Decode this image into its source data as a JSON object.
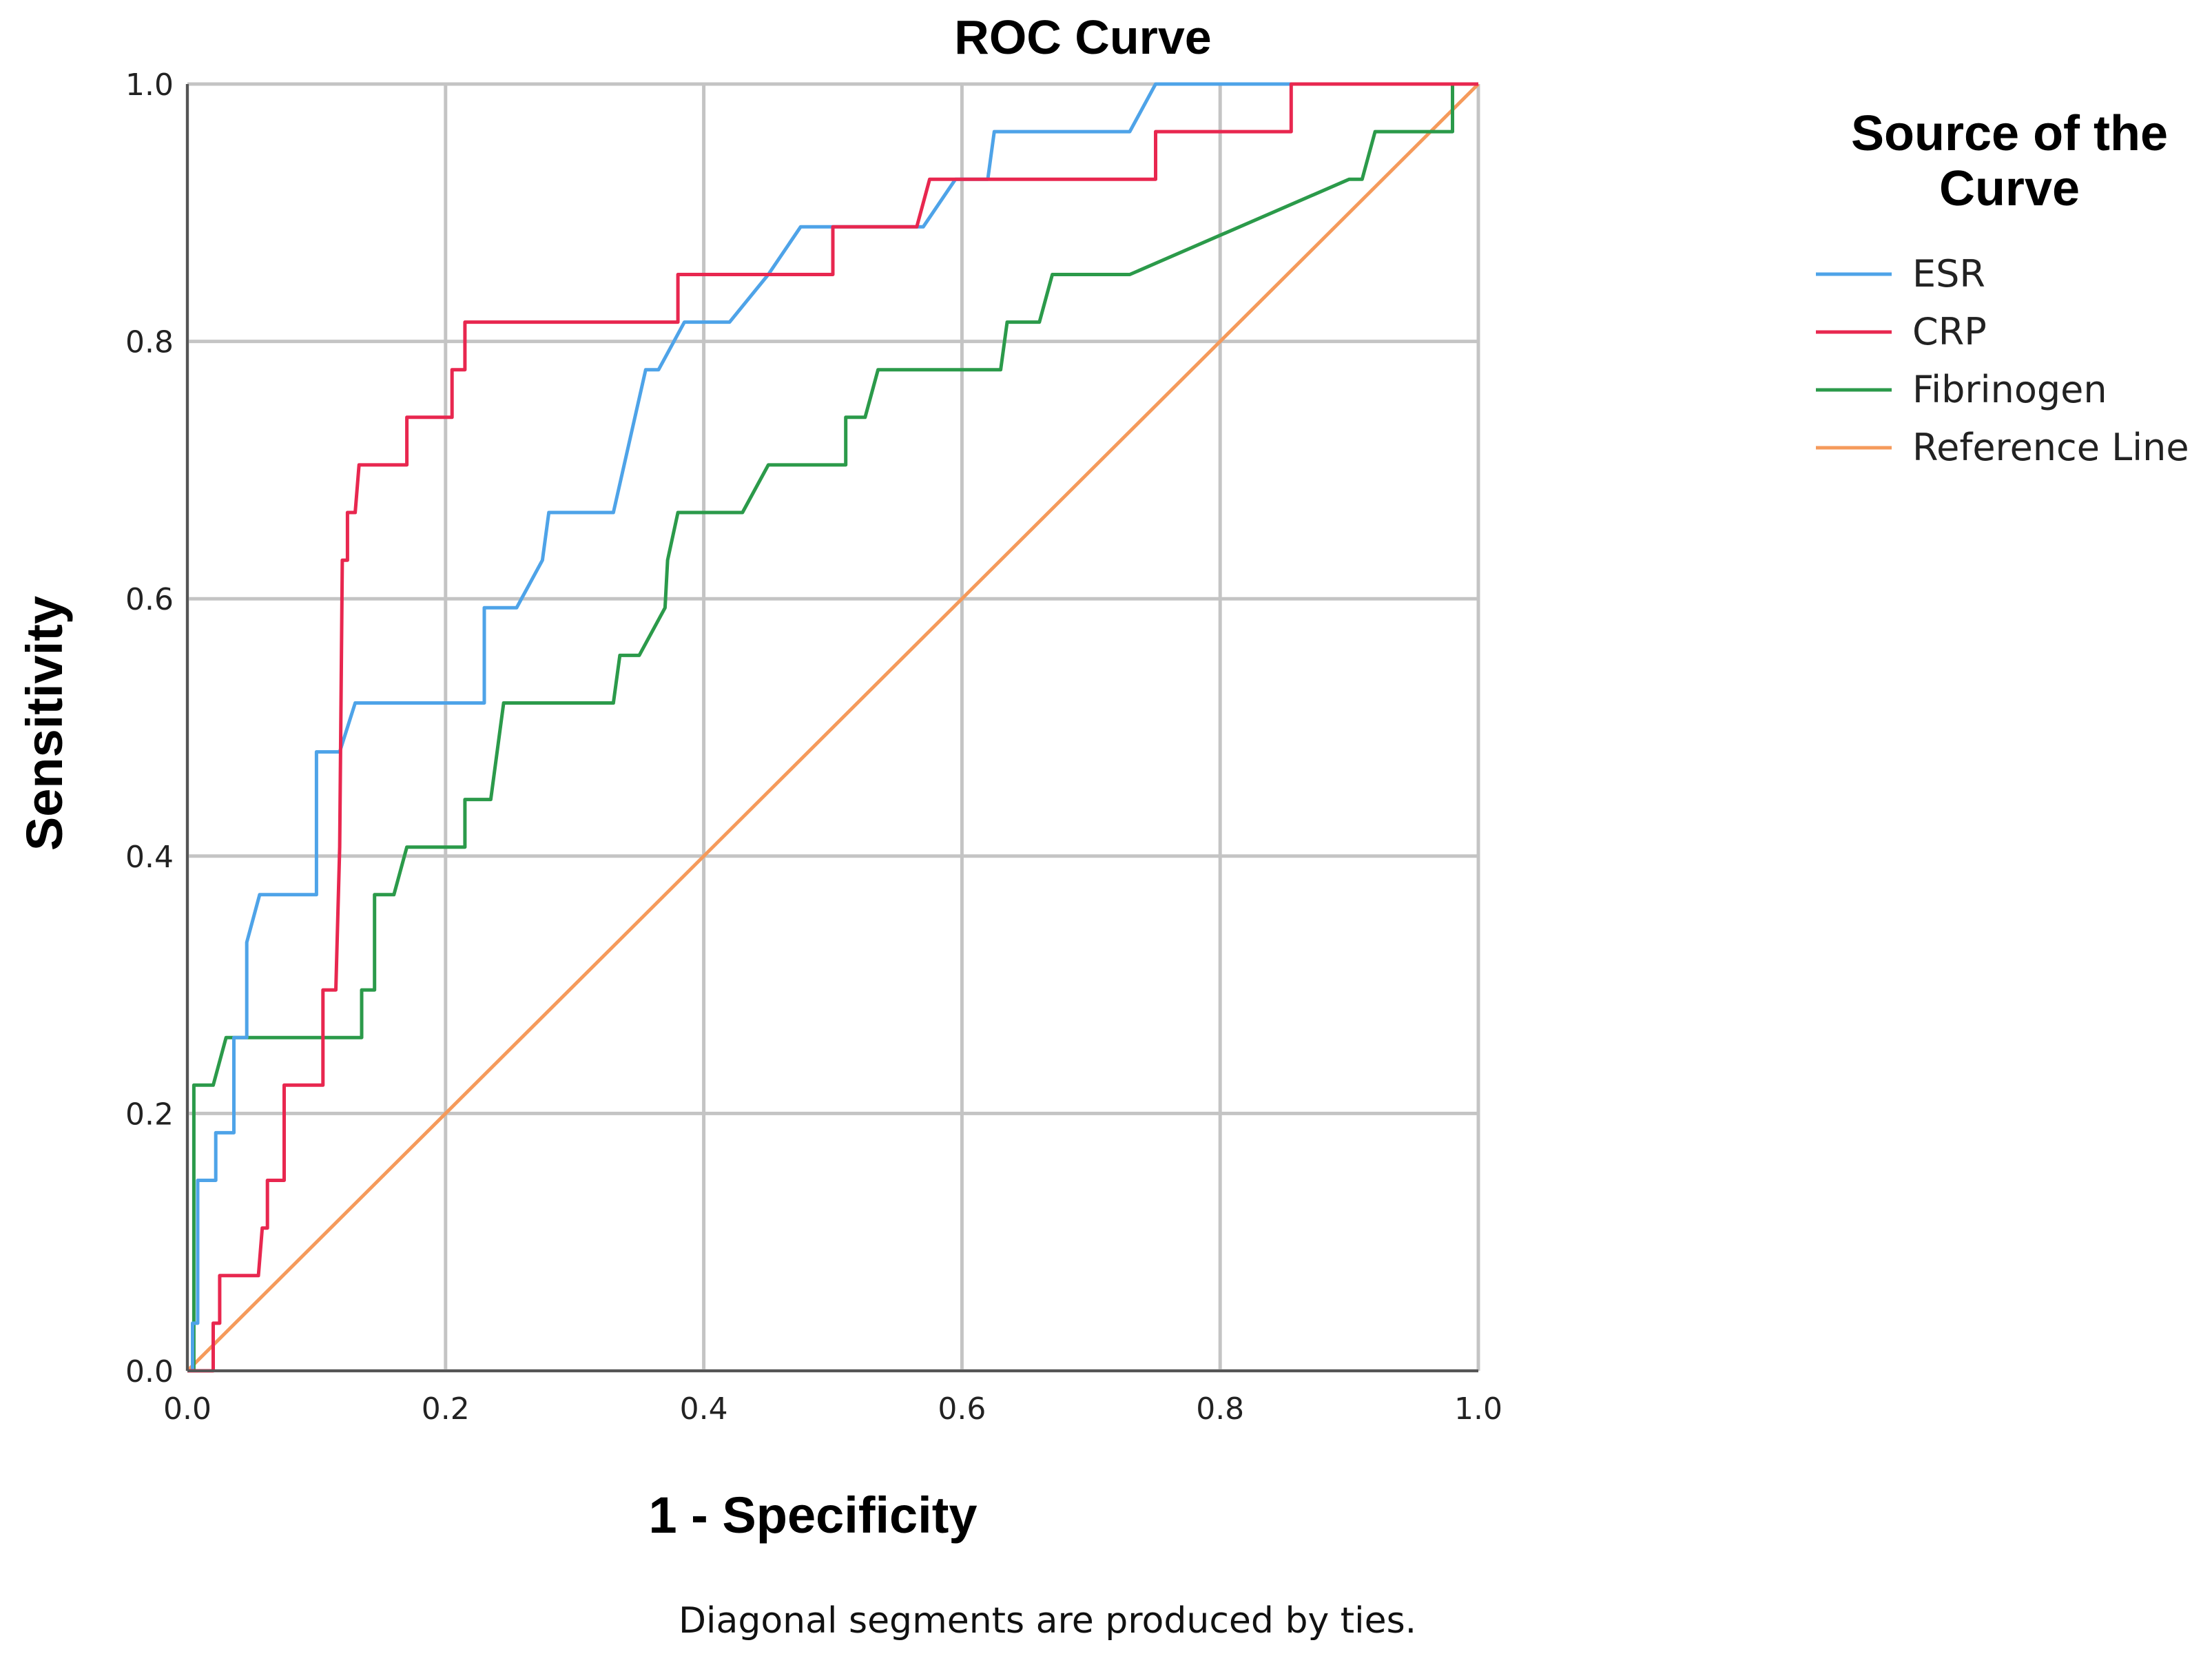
{
  "chart_data": {
    "type": "line",
    "title": "ROC Curve",
    "xlabel": "1 - Specificity",
    "ylabel": "Sensitivity",
    "xlim": [
      0.0,
      1.0
    ],
    "ylim": [
      0.0,
      1.0
    ],
    "x_ticks": [
      "0.0",
      "0.2",
      "0.4",
      "0.6",
      "0.8",
      "1.0"
    ],
    "y_ticks": [
      "0.0",
      "0.2",
      "0.4",
      "0.6",
      "0.8",
      "1.0"
    ],
    "grid": true,
    "legend_title_lines": [
      "Source of the",
      "Curve"
    ],
    "legend_position": "right",
    "footnote": "Diagonal segments are produced by ties.",
    "series": [
      {
        "name": "ESR",
        "color": "#4ea3e8",
        "points": [
          [
            0,
            0
          ],
          [
            0.004,
            0
          ],
          [
            0.004,
            0.037
          ],
          [
            0.008,
            0.037
          ],
          [
            0.008,
            0.148
          ],
          [
            0.022,
            0.148
          ],
          [
            0.022,
            0.185
          ],
          [
            0.036,
            0.185
          ],
          [
            0.036,
            0.259
          ],
          [
            0.046,
            0.259
          ],
          [
            0.046,
            0.333
          ],
          [
            0.056,
            0.37
          ],
          [
            0.1,
            0.37
          ],
          [
            0.1,
            0.481
          ],
          [
            0.118,
            0.481
          ],
          [
            0.13,
            0.519
          ],
          [
            0.23,
            0.519
          ],
          [
            0.23,
            0.593
          ],
          [
            0.255,
            0.593
          ],
          [
            0.275,
            0.63
          ],
          [
            0.28,
            0.667
          ],
          [
            0.33,
            0.667
          ],
          [
            0.355,
            0.778
          ],
          [
            0.365,
            0.778
          ],
          [
            0.385,
            0.815
          ],
          [
            0.42,
            0.815
          ],
          [
            0.45,
            0.852
          ],
          [
            0.475,
            0.889
          ],
          [
            0.5,
            0.889
          ],
          [
            0.57,
            0.889
          ],
          [
            0.595,
            0.926
          ],
          [
            0.62,
            0.926
          ],
          [
            0.625,
            0.963
          ],
          [
            0.73,
            0.963
          ],
          [
            0.75,
            1.0
          ],
          [
            1.0,
            1.0
          ]
        ]
      },
      {
        "name": "CRP",
        "color": "#e8274f",
        "points": [
          [
            0,
            0
          ],
          [
            0.02,
            0
          ],
          [
            0.02,
            0.037
          ],
          [
            0.025,
            0.037
          ],
          [
            0.025,
            0.074
          ],
          [
            0.055,
            0.074
          ],
          [
            0.058,
            0.111
          ],
          [
            0.062,
            0.111
          ],
          [
            0.062,
            0.148
          ],
          [
            0.075,
            0.148
          ],
          [
            0.075,
            0.222
          ],
          [
            0.105,
            0.222
          ],
          [
            0.105,
            0.296
          ],
          [
            0.115,
            0.296
          ],
          [
            0.118,
            0.407
          ],
          [
            0.12,
            0.63
          ],
          [
            0.124,
            0.63
          ],
          [
            0.124,
            0.667
          ],
          [
            0.13,
            0.667
          ],
          [
            0.133,
            0.704
          ],
          [
            0.17,
            0.704
          ],
          [
            0.17,
            0.741
          ],
          [
            0.205,
            0.741
          ],
          [
            0.205,
            0.778
          ],
          [
            0.215,
            0.778
          ],
          [
            0.215,
            0.815
          ],
          [
            0.38,
            0.815
          ],
          [
            0.38,
            0.852
          ],
          [
            0.5,
            0.852
          ],
          [
            0.5,
            0.889
          ],
          [
            0.565,
            0.889
          ],
          [
            0.575,
            0.926
          ],
          [
            0.75,
            0.926
          ],
          [
            0.75,
            0.963
          ],
          [
            0.855,
            0.963
          ],
          [
            0.855,
            1.0
          ],
          [
            1.0,
            1.0
          ]
        ]
      },
      {
        "name": "Fibrinogen",
        "color": "#2b9a4a",
        "points": [
          [
            0,
            0
          ],
          [
            0.005,
            0
          ],
          [
            0.005,
            0.222
          ],
          [
            0.02,
            0.222
          ],
          [
            0.03,
            0.259
          ],
          [
            0.135,
            0.259
          ],
          [
            0.135,
            0.296
          ],
          [
            0.145,
            0.296
          ],
          [
            0.145,
            0.37
          ],
          [
            0.16,
            0.37
          ],
          [
            0.17,
            0.407
          ],
          [
            0.215,
            0.407
          ],
          [
            0.215,
            0.444
          ],
          [
            0.235,
            0.444
          ],
          [
            0.245,
            0.519
          ],
          [
            0.33,
            0.519
          ],
          [
            0.335,
            0.556
          ],
          [
            0.35,
            0.556
          ],
          [
            0.37,
            0.593
          ],
          [
            0.372,
            0.63
          ],
          [
            0.38,
            0.667
          ],
          [
            0.43,
            0.667
          ],
          [
            0.45,
            0.704
          ],
          [
            0.51,
            0.704
          ],
          [
            0.51,
            0.741
          ],
          [
            0.525,
            0.741
          ],
          [
            0.535,
            0.778
          ],
          [
            0.63,
            0.778
          ],
          [
            0.635,
            0.815
          ],
          [
            0.66,
            0.815
          ],
          [
            0.67,
            0.852
          ],
          [
            0.73,
            0.852
          ],
          [
            0.9,
            0.926
          ],
          [
            0.91,
            0.926
          ],
          [
            0.92,
            0.963
          ],
          [
            0.98,
            0.963
          ],
          [
            0.98,
            1.0
          ],
          [
            1.0,
            1.0
          ]
        ]
      },
      {
        "name": "Reference Line",
        "color": "#f59a5b",
        "points": [
          [
            0,
            0
          ],
          [
            1.0,
            1.0
          ]
        ]
      }
    ]
  }
}
